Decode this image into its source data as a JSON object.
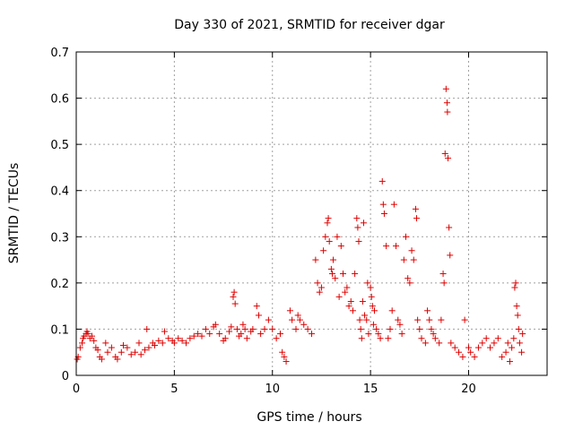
{
  "chart_data": {
    "type": "scatter",
    "title": "Day 330 of 2021, SRMTID for receiver dgar",
    "xlabel": "GPS time / hours",
    "ylabel": "SRMTID / TECUs",
    "xlim": [
      0,
      24
    ],
    "ylim": [
      0,
      0.7
    ],
    "xticks": [
      0,
      5,
      10,
      15,
      20
    ],
    "yticks": [
      0,
      0.1,
      0.2,
      0.3,
      0.4,
      0.5,
      0.6,
      0.7
    ],
    "grid": true,
    "marker": "+",
    "series_color": "#dd0000",
    "series": [
      {
        "name": "SRMTID",
        "points": [
          [
            0.05,
            0.035
          ],
          [
            0.1,
            0.04
          ],
          [
            0.2,
            0.06
          ],
          [
            0.3,
            0.07
          ],
          [
            0.35,
            0.08
          ],
          [
            0.4,
            0.085
          ],
          [
            0.5,
            0.09
          ],
          [
            0.55,
            0.095
          ],
          [
            0.6,
            0.09
          ],
          [
            0.7,
            0.08
          ],
          [
            0.8,
            0.085
          ],
          [
            0.9,
            0.075
          ],
          [
            1.0,
            0.06
          ],
          [
            1.1,
            0.055
          ],
          [
            1.2,
            0.04
          ],
          [
            1.3,
            0.035
          ],
          [
            1.5,
            0.07
          ],
          [
            1.6,
            0.05
          ],
          [
            1.8,
            0.06
          ],
          [
            2.0,
            0.04
          ],
          [
            2.1,
            0.035
          ],
          [
            2.3,
            0.05
          ],
          [
            2.4,
            0.065
          ],
          [
            2.6,
            0.06
          ],
          [
            2.8,
            0.045
          ],
          [
            3.0,
            0.05
          ],
          [
            3.2,
            0.07
          ],
          [
            3.3,
            0.045
          ],
          [
            3.5,
            0.055
          ],
          [
            3.6,
            0.1
          ],
          [
            3.7,
            0.06
          ],
          [
            3.9,
            0.07
          ],
          [
            4.0,
            0.065
          ],
          [
            4.2,
            0.075
          ],
          [
            4.4,
            0.07
          ],
          [
            4.5,
            0.095
          ],
          [
            4.7,
            0.08
          ],
          [
            4.9,
            0.075
          ],
          [
            5.0,
            0.07
          ],
          [
            5.2,
            0.08
          ],
          [
            5.4,
            0.075
          ],
          [
            5.6,
            0.07
          ],
          [
            5.8,
            0.08
          ],
          [
            6.0,
            0.085
          ],
          [
            6.2,
            0.09
          ],
          [
            6.4,
            0.085
          ],
          [
            6.6,
            0.1
          ],
          [
            6.8,
            0.09
          ],
          [
            7.0,
            0.105
          ],
          [
            7.1,
            0.11
          ],
          [
            7.3,
            0.09
          ],
          [
            7.5,
            0.075
          ],
          [
            7.6,
            0.08
          ],
          [
            7.8,
            0.095
          ],
          [
            7.9,
            0.105
          ],
          [
            8.0,
            0.17
          ],
          [
            8.05,
            0.18
          ],
          [
            8.1,
            0.155
          ],
          [
            8.2,
            0.1
          ],
          [
            8.3,
            0.085
          ],
          [
            8.4,
            0.09
          ],
          [
            8.5,
            0.11
          ],
          [
            8.6,
            0.1
          ],
          [
            8.7,
            0.08
          ],
          [
            8.9,
            0.095
          ],
          [
            9.0,
            0.1
          ],
          [
            9.2,
            0.15
          ],
          [
            9.3,
            0.13
          ],
          [
            9.4,
            0.09
          ],
          [
            9.6,
            0.1
          ],
          [
            9.8,
            0.12
          ],
          [
            10.0,
            0.1
          ],
          [
            10.2,
            0.08
          ],
          [
            10.4,
            0.09
          ],
          [
            10.5,
            0.05
          ],
          [
            10.6,
            0.04
          ],
          [
            10.7,
            0.03
          ],
          [
            10.9,
            0.14
          ],
          [
            11.0,
            0.12
          ],
          [
            11.2,
            0.1
          ],
          [
            11.3,
            0.13
          ],
          [
            11.4,
            0.12
          ],
          [
            11.6,
            0.11
          ],
          [
            11.8,
            0.1
          ],
          [
            12.0,
            0.09
          ],
          [
            12.2,
            0.25
          ],
          [
            12.3,
            0.2
          ],
          [
            12.4,
            0.18
          ],
          [
            12.5,
            0.19
          ],
          [
            12.6,
            0.27
          ],
          [
            12.7,
            0.3
          ],
          [
            12.8,
            0.33
          ],
          [
            12.85,
            0.34
          ],
          [
            12.9,
            0.29
          ],
          [
            13.0,
            0.23
          ],
          [
            13.05,
            0.22
          ],
          [
            13.1,
            0.25
          ],
          [
            13.2,
            0.21
          ],
          [
            13.3,
            0.3
          ],
          [
            13.4,
            0.17
          ],
          [
            13.5,
            0.28
          ],
          [
            13.6,
            0.22
          ],
          [
            13.7,
            0.18
          ],
          [
            13.8,
            0.19
          ],
          [
            13.9,
            0.15
          ],
          [
            14.0,
            0.16
          ],
          [
            14.1,
            0.14
          ],
          [
            14.2,
            0.22
          ],
          [
            14.3,
            0.34
          ],
          [
            14.35,
            0.32
          ],
          [
            14.4,
            0.29
          ],
          [
            14.45,
            0.12
          ],
          [
            14.5,
            0.1
          ],
          [
            14.55,
            0.08
          ],
          [
            14.6,
            0.16
          ],
          [
            14.65,
            0.33
          ],
          [
            14.7,
            0.13
          ],
          [
            14.8,
            0.12
          ],
          [
            14.85,
            0.2
          ],
          [
            14.9,
            0.09
          ],
          [
            15.0,
            0.19
          ],
          [
            15.05,
            0.17
          ],
          [
            15.1,
            0.15
          ],
          [
            15.15,
            0.11
          ],
          [
            15.2,
            0.14
          ],
          [
            15.3,
            0.1
          ],
          [
            15.4,
            0.09
          ],
          [
            15.5,
            0.08
          ],
          [
            15.6,
            0.42
          ],
          [
            15.65,
            0.37
          ],
          [
            15.7,
            0.35
          ],
          [
            15.8,
            0.28
          ],
          [
            15.9,
            0.08
          ],
          [
            16.0,
            0.1
          ],
          [
            16.1,
            0.14
          ],
          [
            16.2,
            0.37
          ],
          [
            16.3,
            0.28
          ],
          [
            16.4,
            0.12
          ],
          [
            16.5,
            0.11
          ],
          [
            16.6,
            0.09
          ],
          [
            16.7,
            0.25
          ],
          [
            16.8,
            0.3
          ],
          [
            16.9,
            0.21
          ],
          [
            17.0,
            0.2
          ],
          [
            17.1,
            0.27
          ],
          [
            17.2,
            0.25
          ],
          [
            17.3,
            0.36
          ],
          [
            17.35,
            0.34
          ],
          [
            17.4,
            0.12
          ],
          [
            17.5,
            0.1
          ],
          [
            17.6,
            0.08
          ],
          [
            17.8,
            0.07
          ],
          [
            17.9,
            0.14
          ],
          [
            18.0,
            0.12
          ],
          [
            18.1,
            0.1
          ],
          [
            18.2,
            0.09
          ],
          [
            18.3,
            0.08
          ],
          [
            18.5,
            0.07
          ],
          [
            18.6,
            0.12
          ],
          [
            18.7,
            0.22
          ],
          [
            18.75,
            0.2
          ],
          [
            18.8,
            0.48
          ],
          [
            18.85,
            0.62
          ],
          [
            18.9,
            0.59
          ],
          [
            18.92,
            0.57
          ],
          [
            18.95,
            0.47
          ],
          [
            19.0,
            0.32
          ],
          [
            19.05,
            0.26
          ],
          [
            19.1,
            0.07
          ],
          [
            19.3,
            0.06
          ],
          [
            19.5,
            0.05
          ],
          [
            19.7,
            0.04
          ],
          [
            19.8,
            0.12
          ],
          [
            20.0,
            0.06
          ],
          [
            20.1,
            0.05
          ],
          [
            20.3,
            0.04
          ],
          [
            20.5,
            0.06
          ],
          [
            20.7,
            0.07
          ],
          [
            20.9,
            0.08
          ],
          [
            21.1,
            0.06
          ],
          [
            21.3,
            0.07
          ],
          [
            21.5,
            0.08
          ],
          [
            21.7,
            0.04
          ],
          [
            21.9,
            0.05
          ],
          [
            22.0,
            0.07
          ],
          [
            22.1,
            0.03
          ],
          [
            22.2,
            0.06
          ],
          [
            22.3,
            0.08
          ],
          [
            22.35,
            0.19
          ],
          [
            22.4,
            0.2
          ],
          [
            22.45,
            0.15
          ],
          [
            22.5,
            0.13
          ],
          [
            22.55,
            0.1
          ],
          [
            22.6,
            0.07
          ],
          [
            22.7,
            0.05
          ],
          [
            22.75,
            0.09
          ]
        ]
      }
    ]
  }
}
